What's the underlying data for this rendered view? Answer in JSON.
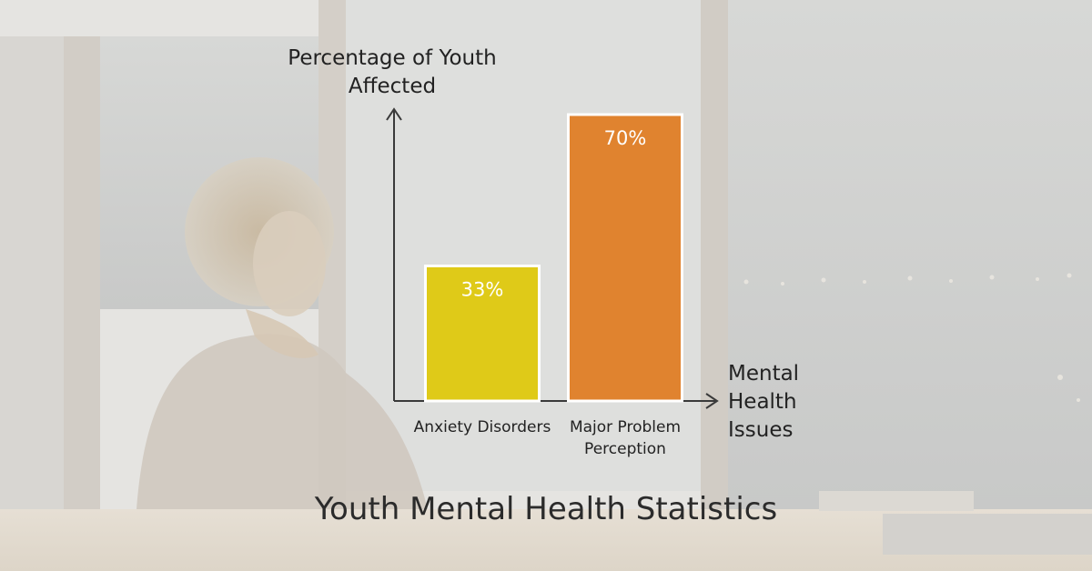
{
  "page_title": "Youth Mental Health Statistics",
  "chart_data": {
    "type": "bar",
    "title": "",
    "ylabel": "Percentage of Youth Affected",
    "xlabel": "Mental Health Issues",
    "categories": [
      "Anxiety Disorders",
      "Major Problem Perception"
    ],
    "values": [
      33,
      70
    ],
    "value_labels": [
      "33%",
      "70%"
    ],
    "colors": [
      "#dfca18",
      "#e0832f"
    ],
    "ylim": [
      0,
      70
    ],
    "grid": false,
    "legend": "none"
  },
  "background": {
    "scene": "woman at a window at night",
    "tint_color": "#e9e8e4"
  }
}
